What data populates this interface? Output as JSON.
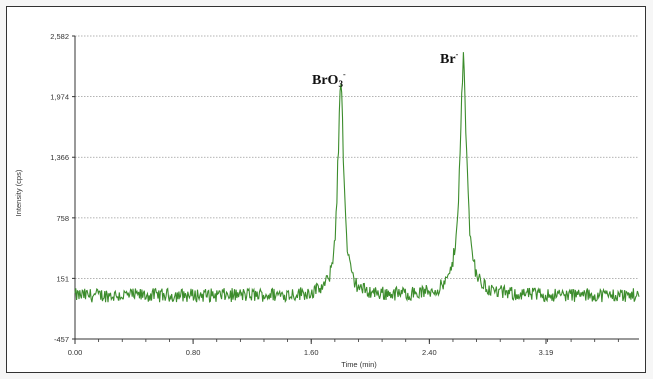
{
  "chart_data": {
    "type": "line",
    "title": "",
    "xlabel": "Time (min)",
    "ylabel": "Intensity (cps)",
    "xlim": [
      0.0,
      3.82
    ],
    "ylim": [
      -457,
      2582
    ],
    "x_ticks": [
      "0.00",
      "0.80",
      "1.60",
      "2.40",
      "3.19"
    ],
    "x_tick_values": [
      0.0,
      0.8,
      1.6,
      2.4,
      3.19
    ],
    "y_ticks": [
      "2,582",
      "1,974",
      "1,366",
      "758",
      "151",
      "-457"
    ],
    "y_tick_values": [
      2582,
      1974,
      1366,
      758,
      151,
      -457
    ],
    "grid": "horizontal",
    "line_color": "#3c8c2c",
    "baseline": -20,
    "noise_amplitude": 70,
    "peaks": [
      {
        "label": "BrO3-",
        "label_main": "BrO",
        "label_sub": "3",
        "label_sup": "-",
        "time": 1.8,
        "height": 2140,
        "width": 0.025
      },
      {
        "label": "Br-",
        "label_main": "Br",
        "label_sup": "-",
        "time": 2.63,
        "height": 2280,
        "width": 0.03
      }
    ]
  }
}
